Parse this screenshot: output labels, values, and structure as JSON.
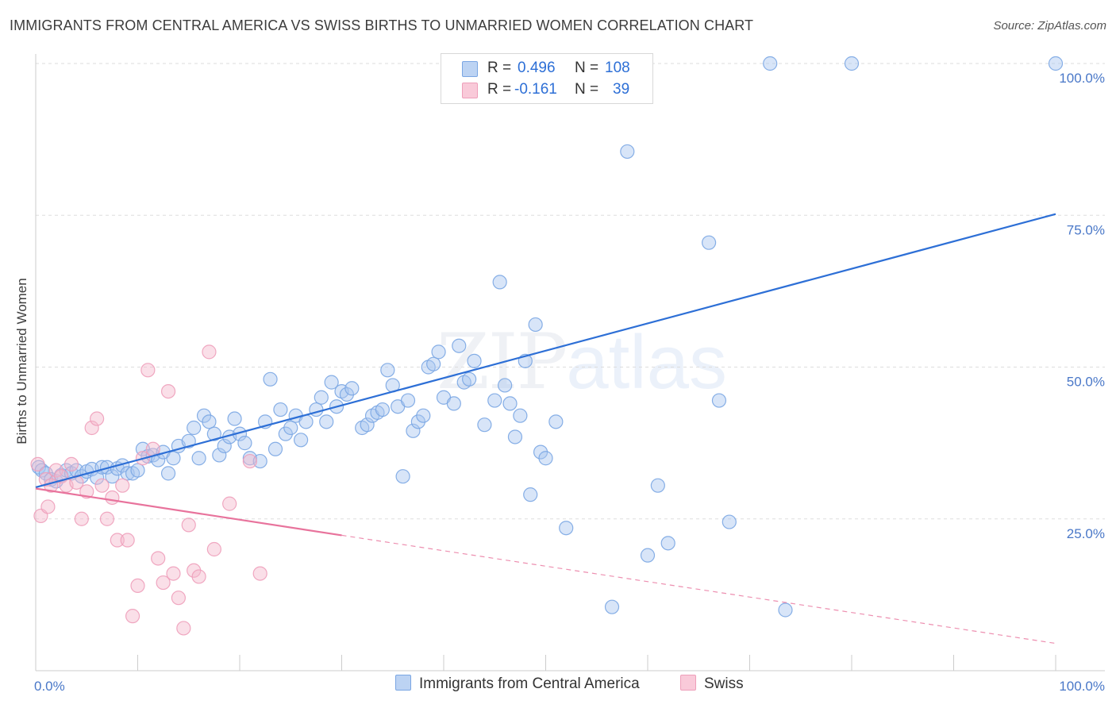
{
  "title": "IMMIGRANTS FROM CENTRAL AMERICA VS SWISS BIRTHS TO UNMARRIED WOMEN CORRELATION CHART",
  "source": "Source: ZipAtlas.com",
  "watermark": {
    "zip": "ZIP",
    "atlas": "atlas"
  },
  "legend": {
    "rows": [
      {
        "r_label": "R =",
        "r_value": "0.496",
        "n_label": "N =",
        "n_value": "108"
      },
      {
        "r_label": "R =",
        "r_value": "-0.161",
        "n_label": "N =",
        "n_value": "39"
      }
    ]
  },
  "colors": {
    "blue_fill": "#a9c6ef",
    "blue_stroke": "#7aa6e3",
    "blue_line": "#2d6fd6",
    "pink_fill": "#f5b8cc",
    "pink_stroke": "#ee9fba",
    "pink_line": "#e8739c",
    "grid": "#dddddd",
    "tick_text": "#4a78c8"
  },
  "chart_data": {
    "type": "scatter",
    "ylabel": "Births to Unmarried Women",
    "xlim": [
      0,
      100
    ],
    "ylim": [
      0,
      100
    ],
    "x_tick_labels": [
      "0.0%",
      "100.0%"
    ],
    "y_ticks": [
      25,
      50,
      75,
      100
    ],
    "y_tick_labels": [
      "25.0%",
      "50.0%",
      "75.0%",
      "100.0%"
    ],
    "grid": "horizontal dashed",
    "legend_position": "bottom",
    "series": [
      {
        "name": "Immigrants from Central America",
        "color": "#a9c6ef",
        "trend": {
          "x": [
            0,
            100
          ],
          "y": [
            30.2,
            75.2
          ],
          "style": "solid"
        },
        "points": [
          [
            0.3,
            33.5
          ],
          [
            0.6,
            33.0
          ],
          [
            1.0,
            32.5
          ],
          [
            1.5,
            31.5
          ],
          [
            2.0,
            31.2
          ],
          [
            2.5,
            32.2
          ],
          [
            3.0,
            33.0
          ],
          [
            3.5,
            32.5
          ],
          [
            4.0,
            33.0
          ],
          [
            4.5,
            32.0
          ],
          [
            5.0,
            32.8
          ],
          [
            5.5,
            33.2
          ],
          [
            6.0,
            31.8
          ],
          [
            6.5,
            33.5
          ],
          [
            7.0,
            33.5
          ],
          [
            7.5,
            32.0
          ],
          [
            8.0,
            33.3
          ],
          [
            8.5,
            33.8
          ],
          [
            9.0,
            32.5
          ],
          [
            9.5,
            32.5
          ],
          [
            10.0,
            33.0
          ],
          [
            10.5,
            36.5
          ],
          [
            11.0,
            35.3
          ],
          [
            11.5,
            35.5
          ],
          [
            12.0,
            34.7
          ],
          [
            12.5,
            36.0
          ],
          [
            13.0,
            32.5
          ],
          [
            13.5,
            35.0
          ],
          [
            14.0,
            37.0
          ],
          [
            15.0,
            37.8
          ],
          [
            15.5,
            40.0
          ],
          [
            16.0,
            35.0
          ],
          [
            16.5,
            42.0
          ],
          [
            17.0,
            41.0
          ],
          [
            17.5,
            39.0
          ],
          [
            18.0,
            35.5
          ],
          [
            18.5,
            37.0
          ],
          [
            19.0,
            38.5
          ],
          [
            19.5,
            41.5
          ],
          [
            20.0,
            39.0
          ],
          [
            20.5,
            37.5
          ],
          [
            21.0,
            35.0
          ],
          [
            22.0,
            34.5
          ],
          [
            22.5,
            41.0
          ],
          [
            23.0,
            48.0
          ],
          [
            23.5,
            36.5
          ],
          [
            24.0,
            43.0
          ],
          [
            24.5,
            39.0
          ],
          [
            25.0,
            40.0
          ],
          [
            25.5,
            42.0
          ],
          [
            26.0,
            38.0
          ],
          [
            26.5,
            41.0
          ],
          [
            27.5,
            43.0
          ],
          [
            28.0,
            45.0
          ],
          [
            28.5,
            41.0
          ],
          [
            29.0,
            47.5
          ],
          [
            29.5,
            43.5
          ],
          [
            30.0,
            46.0
          ],
          [
            30.5,
            45.5
          ],
          [
            31.0,
            46.5
          ],
          [
            32.0,
            40.0
          ],
          [
            32.5,
            40.5
          ],
          [
            33.0,
            42.0
          ],
          [
            33.5,
            42.5
          ],
          [
            34.0,
            43.0
          ],
          [
            34.5,
            49.5
          ],
          [
            35.0,
            47.0
          ],
          [
            35.5,
            43.5
          ],
          [
            36.0,
            32.0
          ],
          [
            36.5,
            44.5
          ],
          [
            37.0,
            39.5
          ],
          [
            37.5,
            41.0
          ],
          [
            38.0,
            42.0
          ],
          [
            38.5,
            50.0
          ],
          [
            39.0,
            50.5
          ],
          [
            39.5,
            52.5
          ],
          [
            40.0,
            45.0
          ],
          [
            41.0,
            44.0
          ],
          [
            41.5,
            53.5
          ],
          [
            42.0,
            47.5
          ],
          [
            42.5,
            48.0
          ],
          [
            43.0,
            51.0
          ],
          [
            44.0,
            40.5
          ],
          [
            45.0,
            44.5
          ],
          [
            45.5,
            64.0
          ],
          [
            46.0,
            47.0
          ],
          [
            46.5,
            44.0
          ],
          [
            47.0,
            38.5
          ],
          [
            47.5,
            42.0
          ],
          [
            48.0,
            51.0
          ],
          [
            48.5,
            29.0
          ],
          [
            49.0,
            57.0
          ],
          [
            49.5,
            36.0
          ],
          [
            50.0,
            35.0
          ],
          [
            51.0,
            41.0
          ],
          [
            52.0,
            23.5
          ],
          [
            56.5,
            10.5
          ],
          [
            58.0,
            85.5
          ],
          [
            60.0,
            19.0
          ],
          [
            61.0,
            30.5
          ],
          [
            62.0,
            21.0
          ],
          [
            66.0,
            70.5
          ],
          [
            67.0,
            44.5
          ],
          [
            68.0,
            24.5
          ],
          [
            72.0,
            100.0
          ],
          [
            73.5,
            10.0
          ],
          [
            80.0,
            100.0
          ],
          [
            100.0,
            100.0
          ]
        ]
      },
      {
        "name": "Swiss",
        "color": "#f5b8cc",
        "trend": {
          "x": [
            0,
            30
          ],
          "y": [
            30.0,
            22.3
          ],
          "style": "solid",
          "extended_x": [
            30,
            100
          ],
          "extended_y": [
            22.3,
            4.5
          ],
          "extended_style": "dashed"
        },
        "points": [
          [
            0.2,
            34.0
          ],
          [
            0.5,
            25.5
          ],
          [
            1.0,
            31.5
          ],
          [
            1.2,
            27.0
          ],
          [
            1.5,
            30.5
          ],
          [
            2.0,
            33.0
          ],
          [
            2.5,
            32.0
          ],
          [
            3.0,
            30.5
          ],
          [
            3.5,
            34.0
          ],
          [
            4.0,
            31.0
          ],
          [
            4.5,
            25.0
          ],
          [
            5.0,
            29.5
          ],
          [
            5.5,
            40.0
          ],
          [
            6.0,
            41.5
          ],
          [
            6.5,
            30.5
          ],
          [
            7.0,
            25.0
          ],
          [
            7.5,
            28.5
          ],
          [
            8.0,
            21.5
          ],
          [
            8.5,
            30.5
          ],
          [
            9.0,
            21.5
          ],
          [
            9.5,
            9.0
          ],
          [
            10.0,
            14.0
          ],
          [
            10.5,
            35.0
          ],
          [
            11.0,
            49.5
          ],
          [
            11.5,
            36.5
          ],
          [
            12.0,
            18.5
          ],
          [
            12.5,
            14.5
          ],
          [
            13.0,
            46.0
          ],
          [
            13.5,
            16.0
          ],
          [
            14.0,
            12.0
          ],
          [
            14.5,
            7.0
          ],
          [
            15.0,
            24.0
          ],
          [
            15.5,
            16.5
          ],
          [
            16.0,
            15.5
          ],
          [
            17.0,
            52.5
          ],
          [
            17.5,
            20.0
          ],
          [
            19.0,
            27.5
          ],
          [
            21.0,
            34.5
          ],
          [
            22.0,
            16.0
          ]
        ]
      }
    ]
  },
  "bottom_legend": [
    {
      "label": "Immigrants from Central America"
    },
    {
      "label": "Swiss"
    }
  ]
}
